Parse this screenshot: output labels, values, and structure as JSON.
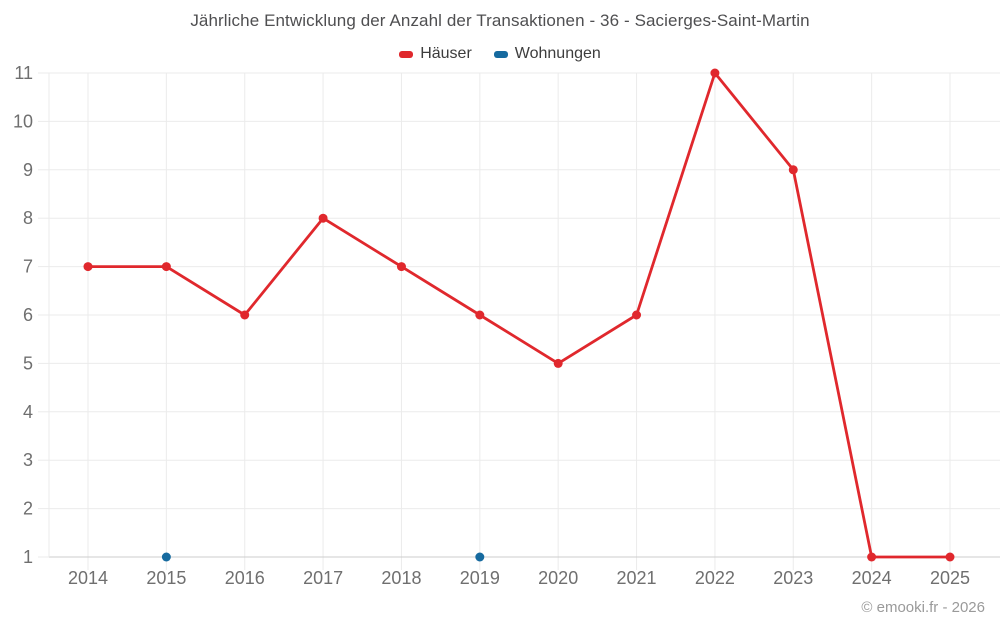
{
  "title": "Jährliche Entwicklung der Anzahl der Transaktionen - 36 - Sacierges-Saint-Martin",
  "footer": {
    "copyright": "© emooki.fr - 2026"
  },
  "colors": {
    "grid": "#ebebeb",
    "axis_line": "#cdcdcd",
    "axis_text": "#6f6f6f",
    "title_text": "#4f4f51",
    "legend_text": "#3d3d3d",
    "copyright_text": "#9a9a9a",
    "background": "#ffffff",
    "series_red": "#e0282d",
    "series_blue": "#166a9f"
  },
  "chart_data": {
    "type": "line",
    "title": "Jährliche Entwicklung der Anzahl der Transaktionen - 36 - Sacierges-Saint-Martin",
    "categories": [
      "2014",
      "2015",
      "2016",
      "2017",
      "2018",
      "2019",
      "2020",
      "2021",
      "2022",
      "2023",
      "2024",
      "2025"
    ],
    "series": [
      {
        "name": "Häuser",
        "color": "#e0282d",
        "values": [
          7,
          7,
          6,
          8,
          7,
          6,
          5,
          6,
          11,
          9,
          1,
          1
        ]
      },
      {
        "name": "Wohnungen",
        "color": "#166a9f",
        "values": [
          null,
          1,
          null,
          null,
          null,
          1,
          null,
          null,
          null,
          null,
          null,
          null
        ]
      }
    ],
    "xlabel": "",
    "ylabel": "",
    "ylim": [
      1,
      11
    ],
    "yticks": [
      1,
      2,
      3,
      4,
      5,
      6,
      7,
      8,
      9,
      10,
      11
    ],
    "grid": true,
    "legend_position": "top"
  }
}
